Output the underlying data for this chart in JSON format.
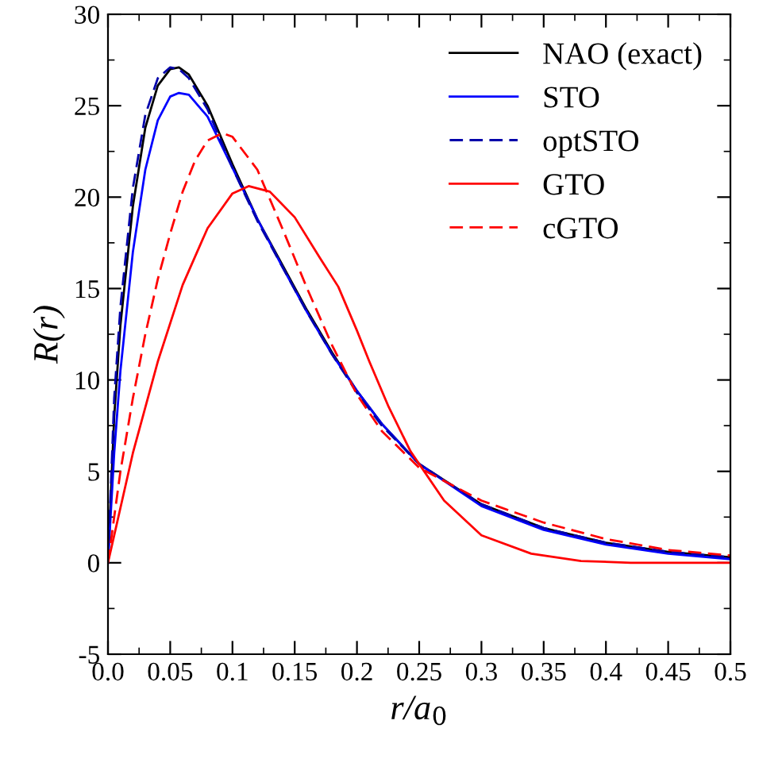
{
  "chart_data": {
    "type": "line",
    "xlabel": "r/a$_{0}$",
    "ylabel": "R(r)",
    "xlim": [
      0,
      0.5
    ],
    "ylim": [
      -5,
      30
    ],
    "xticks": [
      {
        "value": 0,
        "label": "0.0"
      },
      0.05,
      0.1,
      0.15,
      0.2,
      0.25,
      0.3,
      0.35,
      0.4,
      0.45,
      0.5
    ],
    "yticks": [
      -5,
      0,
      5,
      10,
      15,
      20,
      25,
      30
    ],
    "grid": false,
    "legend": "top right",
    "marker": "none",
    "series": [
      {
        "name": "NAO (exact)",
        "color": "#000000",
        "line_style": "solid",
        "x": [
          0,
          0.005,
          0.01,
          0.02,
          0.03,
          0.04,
          0.05,
          0.057,
          0.065,
          0.08,
          0.1,
          0.12,
          0.14,
          0.16,
          0.18,
          0.2,
          0.22,
          0.25,
          0.3,
          0.35,
          0.4,
          0.45,
          0.5
        ],
        "values": [
          0,
          8,
          13,
          19.5,
          23.8,
          26.1,
          27.0,
          27.1,
          26.7,
          25.0,
          21.8,
          18.8,
          16.3,
          13.8,
          11.5,
          9.4,
          7.6,
          5.4,
          3.2,
          1.9,
          1.1,
          0.6,
          0.3
        ]
      },
      {
        "name": "STO",
        "color": "#0000ff",
        "line_style": "solid",
        "x": [
          0,
          0.005,
          0.01,
          0.02,
          0.03,
          0.04,
          0.05,
          0.057,
          0.065,
          0.08,
          0.1,
          0.12,
          0.14,
          0.16,
          0.18,
          0.2,
          0.22,
          0.25,
          0.3,
          0.35,
          0.4,
          0.45,
          0.5
        ],
        "values": [
          0,
          6,
          10.5,
          17,
          21.5,
          24.2,
          25.5,
          25.7,
          25.6,
          24.4,
          21.6,
          18.8,
          16.2,
          13.7,
          11.4,
          9.4,
          7.6,
          5.4,
          3.1,
          1.8,
          1.0,
          0.5,
          0.2
        ]
      },
      {
        "name": "optSTO",
        "color": "#0000aa",
        "line_style": "dashed",
        "x": [
          0,
          0.005,
          0.01,
          0.02,
          0.03,
          0.04,
          0.05,
          0.057,
          0.065,
          0.08,
          0.1,
          0.12,
          0.14,
          0.16,
          0.18,
          0.2,
          0.22,
          0.25,
          0.3,
          0.35,
          0.4,
          0.45,
          0.5
        ],
        "values": [
          0,
          9,
          14,
          20.5,
          24.5,
          26.5,
          27.1,
          27.0,
          26.5,
          24.8,
          21.6,
          18.7,
          16.2,
          13.7,
          11.4,
          9.3,
          7.5,
          5.4,
          3.2,
          1.9,
          1.1,
          0.6,
          0.3
        ]
      },
      {
        "name": "GTO",
        "color": "#ff0000",
        "line_style": "solid",
        "x": [
          0,
          0.02,
          0.04,
          0.06,
          0.08,
          0.1,
          0.113,
          0.13,
          0.15,
          0.17,
          0.185,
          0.2,
          0.21,
          0.225,
          0.243,
          0.27,
          0.3,
          0.34,
          0.38,
          0.42,
          0.5
        ],
        "values": [
          0,
          6,
          11,
          15.2,
          18.3,
          20.2,
          20.6,
          20.3,
          18.9,
          16.7,
          15.1,
          12.7,
          11.0,
          8.6,
          6.1,
          3.4,
          1.5,
          0.5,
          0.1,
          0,
          0
        ]
      },
      {
        "name": "cGTO",
        "color": "#ff0000",
        "line_style": "dashed",
        "x": [
          0,
          0.01,
          0.02,
          0.03,
          0.04,
          0.05,
          0.06,
          0.07,
          0.08,
          0.092,
          0.1,
          0.12,
          0.14,
          0.16,
          0.18,
          0.2,
          0.22,
          0.25,
          0.3,
          0.35,
          0.4,
          0.45,
          0.5
        ],
        "values": [
          0,
          5,
          9,
          12.5,
          15.5,
          18,
          20.3,
          22,
          23.1,
          23.5,
          23.3,
          21.5,
          18.3,
          15.0,
          11.9,
          9.2,
          7.2,
          5.2,
          3.4,
          2.2,
          1.3,
          0.7,
          0.4
        ]
      }
    ]
  }
}
